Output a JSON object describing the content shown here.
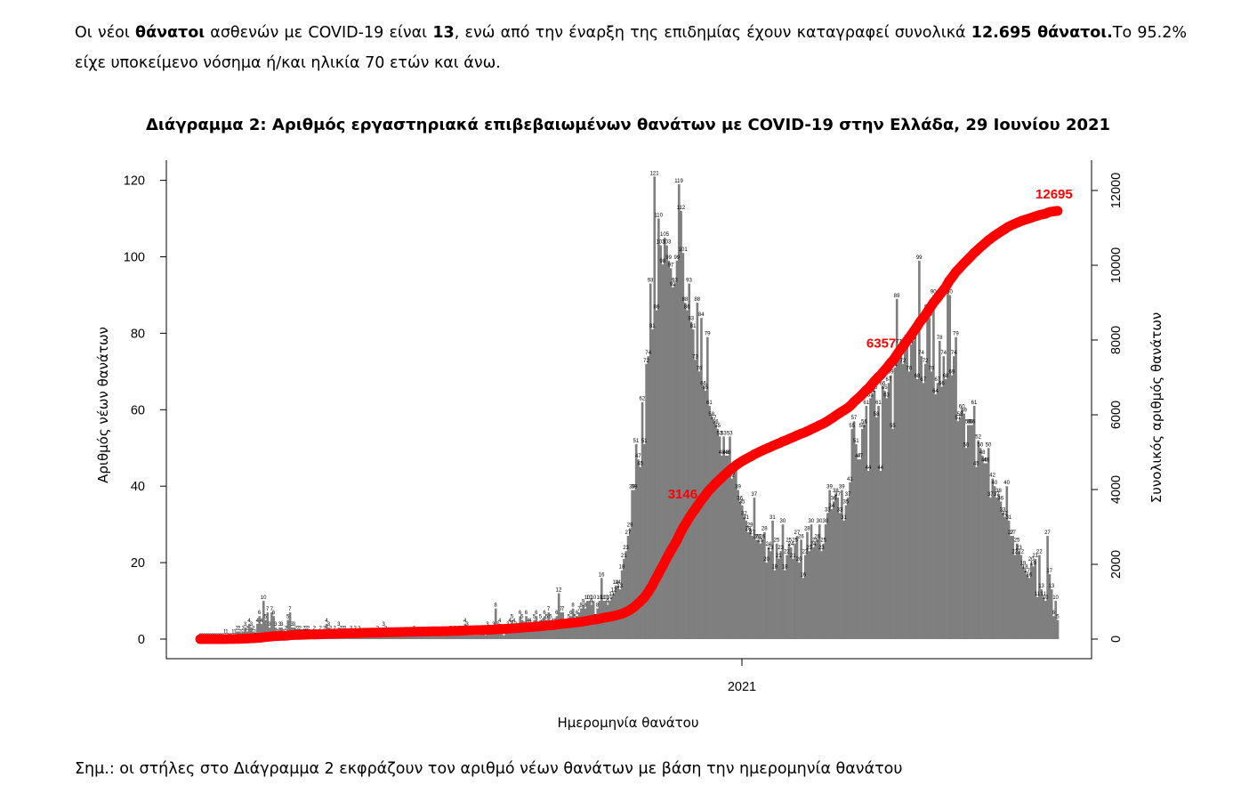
{
  "intro": {
    "p1": "Οι νέοι ",
    "b1": "θάνατοι",
    "p2": " ασθενών με COVID-19 είναι ",
    "b2": "13",
    "p3": ", ενώ από την έναρξη της επιδημίας έχουν καταγραφεί συνολικά ",
    "b3": "12.695 θάνατοι.",
    "p4": "Το 95.2% είχε υποκείμενο νόσημα ή/και ηλικία 70 ετών και άνω."
  },
  "note": "Σημ.: οι στήλες στο Διάγραμμα 2 εκφράζουν τον αριθμό νέων θανάτων με βάση την ημερομηνία θανάτου",
  "chart_data": {
    "type": "bar",
    "title": "Διάγραμμα 2: Αριθμός εργαστηριακά επιβεβαιωμένων θανάτων με COVID-19 στην Ελλάδα, 29 Ιουνίου 2021",
    "xlabel": "Ημερομηνία θανάτου",
    "ylabel": "Αριθμός νέων θανάτων",
    "y2label": "Συνολικός αριθμός θανάτων",
    "x_tick_label": "2021",
    "ylim": [
      0,
      125
    ],
    "y2lim": [
      0,
      13000
    ],
    "yticks": [
      "0",
      "20",
      "40",
      "60",
      "80",
      "100",
      "120"
    ],
    "y2ticks": [
      "0",
      "2000",
      "4000",
      "6000",
      "8000",
      "10000",
      "12000"
    ],
    "colors": {
      "bars": "#7f7f7f",
      "cumulative": "#ff0000"
    },
    "series": [
      {
        "name": "Αριθμός νέων θανάτων",
        "axis": "left",
        "values": [
          0,
          0,
          0,
          0,
          0,
          0,
          0,
          0,
          0,
          0,
          0,
          0,
          1,
          1,
          0,
          0,
          1,
          1,
          2,
          2,
          1,
          2,
          3,
          2,
          4,
          3,
          2,
          1,
          4,
          6,
          4,
          10,
          5,
          7,
          3,
          7,
          6,
          3,
          1,
          3,
          3,
          1,
          2,
          5,
          7,
          3,
          3,
          2,
          2,
          2,
          1,
          2,
          2,
          2,
          1,
          1,
          2,
          1,
          1,
          2,
          1,
          2,
          4,
          3,
          2,
          1,
          2,
          1,
          3,
          2,
          2,
          2,
          1,
          1,
          2,
          1,
          2,
          1,
          2,
          1,
          1,
          1,
          1,
          1,
          1,
          1,
          1,
          2,
          1,
          1,
          3,
          2,
          1,
          1,
          1,
          1,
          1,
          1,
          1,
          1,
          1,
          1,
          1,
          1,
          1,
          2,
          1,
          1,
          1,
          1,
          1,
          1,
          1,
          1,
          1,
          1,
          1,
          1,
          1,
          1,
          1,
          1,
          1,
          2,
          1,
          2,
          1,
          2,
          2,
          2,
          4,
          3,
          1,
          1,
          1,
          1,
          1,
          1,
          2,
          2,
          1,
          3,
          2,
          2,
          3,
          8,
          3,
          4,
          2,
          1,
          2,
          3,
          4,
          5,
          4,
          3,
          2,
          6,
          5,
          3,
          6,
          4,
          4,
          2,
          5,
          6,
          3,
          5,
          4,
          6,
          5,
          7,
          5,
          4,
          4,
          6,
          12,
          7,
          7,
          3,
          4,
          5,
          6,
          8,
          5,
          6,
          7,
          8,
          9,
          8,
          10,
          10,
          9,
          10,
          5,
          8,
          10,
          16,
          10,
          10,
          9,
          10,
          11,
          12,
          14,
          14,
          13,
          18,
          21,
          23,
          27,
          29,
          39,
          39,
          51,
          47,
          45,
          62,
          51,
          72,
          74,
          93,
          81,
          121,
          86,
          110,
          103,
          98,
          105,
          103,
          99,
          97,
          92,
          93,
          99,
          119,
          112,
          101,
          88,
          86,
          93,
          83,
          81,
          73,
          88,
          70,
          84,
          66,
          65,
          79,
          61,
          58,
          57,
          56,
          55,
          53,
          48,
          53,
          48,
          48,
          53,
          42,
          44,
          44,
          39,
          36,
          35,
          32,
          31,
          28,
          29,
          27,
          37,
          26,
          26,
          25,
          26,
          28,
          20,
          24,
          23,
          31,
          18,
          25,
          21,
          23,
          30,
          18,
          22,
          25,
          24,
          21,
          25,
          27,
          20,
          26,
          16,
          22,
          28,
          23,
          30,
          24,
          25,
          26,
          30,
          23,
          25,
          30,
          33,
          39,
          34,
          36,
          38,
          37,
          33,
          39,
          31,
          35,
          37,
          41,
          55,
          57,
          51,
          47,
          47,
          55,
          56,
          61,
          44,
          63,
          64,
          65,
          58,
          61,
          44,
          66,
          65,
          63,
          67,
          69,
          55,
          71,
          89,
          77,
          74,
          72,
          76,
          78,
          70,
          77,
          78,
          81,
          68,
          99,
          74,
          67,
          72,
          86,
          84,
          70,
          90,
          64,
          67,
          78,
          66,
          74,
          68,
          93,
          90,
          69,
          74,
          79,
          57,
          58,
          60,
          59,
          50,
          56,
          56,
          56,
          61,
          45,
          52,
          50,
          48,
          46,
          46,
          50,
          37,
          42,
          40,
          37,
          38,
          36,
          33,
          32,
          40,
          31,
          27,
          27,
          22,
          25,
          23,
          22,
          19,
          18,
          17,
          16,
          20,
          19,
          21,
          11,
          22,
          13,
          11,
          10,
          27,
          17,
          13,
          6,
          10,
          5
        ]
      },
      {
        "name": "Συνολικός αριθμός θανάτων",
        "axis": "right",
        "labels": [
          {
            "text": "3146",
            "index": 243
          },
          {
            "text": "6357",
            "index": 344
          },
          {
            "text": "12695",
            "index": 421
          }
        ]
      }
    ]
  }
}
